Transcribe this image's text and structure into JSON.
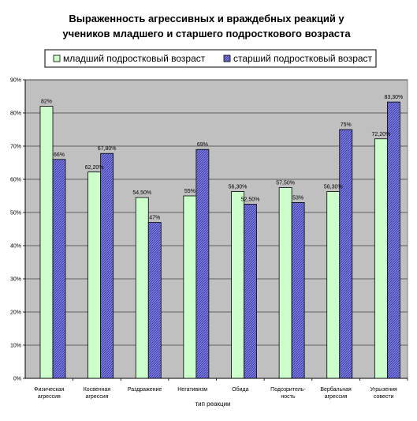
{
  "chart_data": {
    "type": "bar",
    "title_lines": [
      "Выраженность агрессивных и враждебных реакций у",
      "учеников младшего и старшего подросткового возраста"
    ],
    "xlabel": "тип реакции",
    "ylabel": "",
    "ylim": [
      0,
      90
    ],
    "y_ticks": [
      {
        "value": 0,
        "label": "0%"
      },
      {
        "value": 10,
        "label": "10%"
      },
      {
        "value": 20,
        "label": "20%"
      },
      {
        "value": 30,
        "label": "30%"
      },
      {
        "value": 40,
        "label": "40%"
      },
      {
        "value": 50,
        "label": "50%"
      },
      {
        "value": 60,
        "label": "60%"
      },
      {
        "value": 70,
        "label": "70%"
      },
      {
        "value": 80,
        "label": "80%"
      },
      {
        "value": 90,
        "label": "90%"
      }
    ],
    "grid": true,
    "legend_placement": "top",
    "categories": [
      [
        "Физическая",
        "агрессия"
      ],
      [
        "Косвенная",
        "агрессия"
      ],
      [
        "Раздражение"
      ],
      [
        "Негативизм"
      ],
      [
        "Обида"
      ],
      [
        "Подозритель-",
        "ность"
      ],
      [
        "Вербальная",
        "агрессия"
      ],
      [
        "Угрызения",
        "совести"
      ]
    ],
    "series": [
      {
        "name": "младший подростковый возраст",
        "color": "#ccffcc",
        "values": [
          82,
          62.2,
          54.5,
          55,
          56.3,
          57.5,
          56.3,
          72.2
        ],
        "labels": [
          "82%",
          "62,20%",
          "54,50%",
          "55%",
          "56,30%",
          "57,50%",
          "56,30%",
          "72,20%"
        ]
      },
      {
        "name": "старший подростковый возраст",
        "color": "#6666cc",
        "values": [
          66,
          67.8,
          47,
          69,
          52.5,
          53,
          75,
          83.3
        ],
        "labels": [
          "66%",
          "67,80%",
          "47%",
          "69%",
          "52,50%",
          "53%",
          "75%",
          "83,30%"
        ]
      }
    ]
  },
  "colors": {
    "plot_background": "#c0c0c0",
    "gridline": "#000000"
  }
}
